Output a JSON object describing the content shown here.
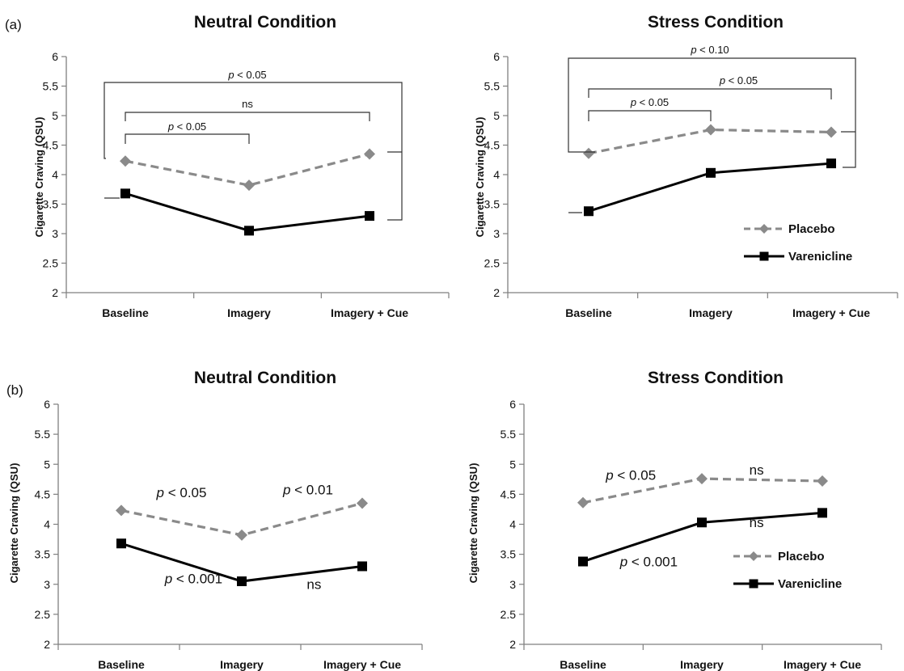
{
  "panel_labels": {
    "a": "(a)",
    "b": "(b)"
  },
  "colors": {
    "placebo": "#8a8a8a",
    "varenicline": "#000000",
    "axis": "#7f7f7f",
    "bracket": "#333333"
  },
  "legend": {
    "placebo": "Placebo",
    "varenicline": "Varenicline"
  },
  "chart_data": [
    {
      "id": "a-neutral",
      "panel": "(a)",
      "type": "line",
      "title": "Neutral Condition",
      "ylabel": "Cigarette Craving (QSU)",
      "xlabel": "",
      "categories": [
        "Baseline",
        "Imagery",
        "Imagery + Cue"
      ],
      "ylim": [
        2,
        6
      ],
      "yticks": [
        "2",
        "2.5",
        "3",
        "3.5",
        "4",
        "4.5",
        "5",
        "5.5",
        "6"
      ],
      "grid": false,
      "series": [
        {
          "name": "Placebo",
          "style": "dashed-diamond",
          "values": [
            4.23,
            3.82,
            4.35
          ]
        },
        {
          "name": "Varenicline",
          "style": "solid-square",
          "values": [
            3.68,
            3.05,
            3.3
          ]
        }
      ],
      "comparisons": [
        {
          "from": "Baseline",
          "to": "Imagery",
          "text": "p < 0.05"
        },
        {
          "from": "Baseline",
          "to": "Imagery + Cue",
          "text": "ns"
        },
        {
          "from": "Baseline",
          "to": "Imagery + Cue",
          "text": "p < 0.05"
        }
      ]
    },
    {
      "id": "a-stress",
      "panel": "(a)",
      "type": "line",
      "title": "Stress Condition",
      "ylabel": "Cigarette Craving (QSU)",
      "xlabel": "",
      "categories": [
        "Baseline",
        "Imagery",
        "Imagery + Cue"
      ],
      "ylim": [
        2,
        6
      ],
      "yticks": [
        "2",
        "2.5",
        "3",
        "3.5",
        "4",
        "4.5",
        "5",
        "5.5",
        "6"
      ],
      "grid": false,
      "legend_position": "bottom-right",
      "series": [
        {
          "name": "Placebo",
          "style": "dashed-diamond",
          "values": [
            4.36,
            4.76,
            4.72
          ]
        },
        {
          "name": "Varenicline",
          "style": "solid-square",
          "values": [
            3.38,
            4.03,
            4.19
          ]
        }
      ],
      "comparisons": [
        {
          "from": "Baseline",
          "to": "Imagery",
          "text": "p < 0.05"
        },
        {
          "from": "Baseline",
          "to": "Imagery + Cue",
          "text": "p < 0.05"
        },
        {
          "from": "Baseline",
          "to": "Imagery + Cue",
          "text": "p < 0.10"
        }
      ]
    },
    {
      "id": "b-neutral",
      "panel": "(b)",
      "type": "line",
      "title": "Neutral Condition",
      "ylabel": "Cigarette Craving (QSU)",
      "xlabel": "",
      "categories": [
        "Baseline",
        "Imagery",
        "Imagery + Cue"
      ],
      "ylim": [
        2,
        6
      ],
      "yticks": [
        "2",
        "2.5",
        "3",
        "3.5",
        "4",
        "4.5",
        "5",
        "5.5",
        "6"
      ],
      "grid": false,
      "series": [
        {
          "name": "Placebo",
          "style": "dashed-diamond",
          "values": [
            4.23,
            3.82,
            4.35
          ]
        },
        {
          "name": "Varenicline",
          "style": "solid-square",
          "values": [
            3.68,
            3.05,
            3.3
          ]
        }
      ],
      "annotations": [
        {
          "text": "p < 0.05",
          "x": 0.5,
          "y": 4.45
        },
        {
          "text": "p < 0.01",
          "x": 1.55,
          "y": 4.5
        },
        {
          "text": "p < 0.001",
          "x": 0.6,
          "y": 3.02
        },
        {
          "text": "ns",
          "x": 1.6,
          "y": 2.92
        }
      ]
    },
    {
      "id": "b-stress",
      "panel": "(b)",
      "type": "line",
      "title": "Stress Condition",
      "ylabel": "Cigarette Craving (QSU)",
      "xlabel": "",
      "categories": [
        "Baseline",
        "Imagery",
        "Imagery + Cue"
      ],
      "ylim": [
        2,
        6
      ],
      "yticks": [
        "2",
        "2.5",
        "3",
        "3.5",
        "4",
        "4.5",
        "5",
        "5.5",
        "6"
      ],
      "grid": false,
      "legend_position": "bottom-right",
      "series": [
        {
          "name": "Placebo",
          "style": "dashed-diamond",
          "values": [
            4.36,
            4.76,
            4.72
          ]
        },
        {
          "name": "Varenicline",
          "style": "solid-square",
          "values": [
            3.38,
            4.03,
            4.19
          ]
        }
      ],
      "annotations": [
        {
          "text": "p < 0.05",
          "x": 0.4,
          "y": 4.74
        },
        {
          "text": "ns",
          "x": 1.45,
          "y": 4.83
        },
        {
          "text": "ns",
          "x": 1.45,
          "y": 3.95
        },
        {
          "text": "p < 0.001",
          "x": 0.55,
          "y": 3.3
        }
      ]
    }
  ]
}
